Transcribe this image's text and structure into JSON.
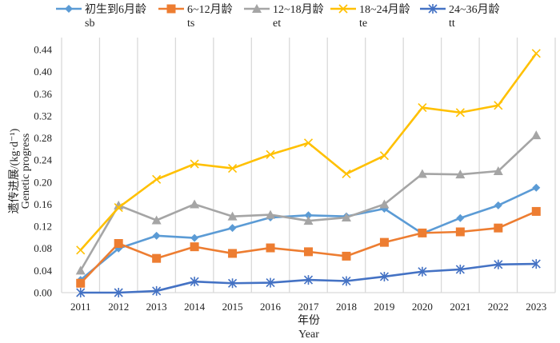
{
  "chart_data": {
    "type": "line",
    "title": "",
    "xlabel": [
      "年份",
      "Year"
    ],
    "ylabel": [
      "遗传进展/(kg·d⁻¹)",
      "Genetic progress"
    ],
    "categories": [
      "2011",
      "2012",
      "2013",
      "2014",
      "2015",
      "2016",
      "2017",
      "2018",
      "2019",
      "2020",
      "2021",
      "2022",
      "2023"
    ],
    "ylim": [
      0,
      0.44
    ],
    "yticks": [
      "0.00",
      "0.04",
      "0.08",
      "0.12",
      "0.16",
      "0.20",
      "0.24",
      "0.28",
      "0.32",
      "0.36",
      "0.40",
      "0.44"
    ],
    "grid": "vertical",
    "legend_position": "top",
    "series": [
      {
        "name": "初生到6月龄",
        "code": "sb",
        "color": "#5b9bd5",
        "marker": "diamond",
        "values": [
          0.023,
          0.08,
          0.103,
          0.099,
          0.117,
          0.136,
          0.14,
          0.138,
          0.152,
          0.107,
          0.135,
          0.158,
          0.19
        ]
      },
      {
        "name": "6~12月龄",
        "code": "ts",
        "color": "#ed7d31",
        "marker": "square",
        "values": [
          0.017,
          0.089,
          0.062,
          0.083,
          0.071,
          0.081,
          0.074,
          0.066,
          0.091,
          0.108,
          0.11,
          0.117,
          0.147
        ]
      },
      {
        "name": "12~18月龄",
        "code": "et",
        "color": "#a5a5a5",
        "marker": "triangle",
        "values": [
          0.04,
          0.158,
          0.131,
          0.16,
          0.138,
          0.141,
          0.13,
          0.136,
          0.16,
          0.215,
          0.214,
          0.22,
          0.285
        ]
      },
      {
        "name": "18~24月龄",
        "code": "te",
        "color": "#ffc000",
        "marker": "x",
        "values": [
          0.077,
          0.154,
          0.205,
          0.233,
          0.225,
          0.25,
          0.271,
          0.215,
          0.248,
          0.335,
          0.326,
          0.339,
          0.433
        ]
      },
      {
        "name": "24~36月龄",
        "code": "tt",
        "color": "#4472c4",
        "marker": "star",
        "values": [
          0.0,
          0.0,
          0.003,
          0.02,
          0.017,
          0.018,
          0.023,
          0.021,
          0.029,
          0.038,
          0.042,
          0.051,
          0.052
        ]
      }
    ]
  }
}
